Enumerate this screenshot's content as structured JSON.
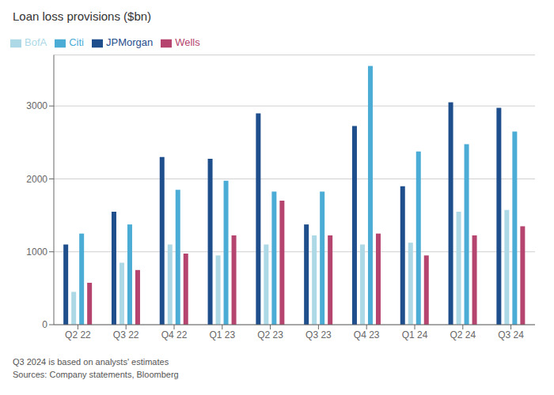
{
  "chart_data": {
    "type": "bar",
    "title": "Loan loss provisions ($bn)",
    "categories": [
      "Q2 22",
      "Q3 22",
      "Q4 22",
      "Q1 23",
      "Q2 23",
      "Q3 23",
      "Q4 23",
      "Q1 24",
      "Q2 24",
      "Q3 24"
    ],
    "series": [
      {
        "name": "JPMorgan",
        "color": "#1f4e8c",
        "values": [
          1100,
          1550,
          2300,
          2275,
          2900,
          1375,
          2725,
          1900,
          3050,
          2975
        ]
      },
      {
        "name": "BofA",
        "color": "#add8e6",
        "values": [
          450,
          850,
          1100,
          950,
          1100,
          1225,
          1100,
          1125,
          1550,
          1575
        ]
      },
      {
        "name": "Citi",
        "color": "#4bacd6",
        "values": [
          1250,
          1375,
          1850,
          1975,
          1825,
          1825,
          3550,
          2375,
          2475,
          2650
        ]
      },
      {
        "name": "Wells",
        "color": "#b5446e",
        "values": [
          575,
          750,
          975,
          1225,
          1700,
          1225,
          1250,
          950,
          1225,
          1350
        ]
      }
    ],
    "ylim": [
      0,
      3700
    ],
    "yticks": [
      0,
      1000,
      2000,
      3000
    ],
    "grid": true,
    "legend": "top-left",
    "annotations": [
      "Q3 2024 is based on analysts' estimates",
      "Sources: Company statements, Bloomberg"
    ]
  }
}
